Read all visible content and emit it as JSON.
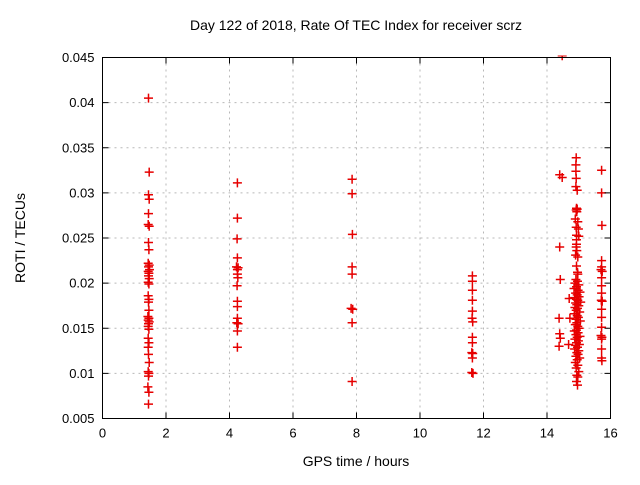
{
  "chart_data": {
    "type": "scatter",
    "title": "Day 122 of 2018, Rate Of TEC Index for receiver scrz",
    "xlabel": "GPS time / hours",
    "ylabel": "ROTI / TECUs",
    "xlim": [
      0,
      16
    ],
    "ylim": [
      0.005,
      0.045
    ],
    "xticks": {
      "values": [
        0,
        2,
        4,
        6,
        8,
        10,
        12,
        14,
        16
      ],
      "labels": [
        "0",
        "2",
        "4",
        "6",
        "8",
        "10",
        "12",
        "14",
        "16"
      ]
    },
    "yticks": {
      "values": [
        0.005,
        0.01,
        0.015,
        0.02,
        0.025,
        0.03,
        0.035,
        0.04,
        0.045
      ],
      "labels": [
        "0.005",
        "0.01",
        "0.015",
        "0.02",
        "0.025",
        "0.03",
        "0.035",
        "0.04",
        "0.045"
      ]
    },
    "grid": true,
    "legend_position": "none",
    "marker": {
      "shape": "plus",
      "size": 9,
      "stroke_width": 1.5
    },
    "colors": {
      "background": "#ffffff",
      "border": "#000000",
      "grid": "#b8b8b8",
      "text": "#000000",
      "points": "#e60000"
    },
    "series": [
      {
        "name": "ROTI",
        "points": [
          [
            1.45,
            0.0405
          ],
          [
            1.47,
            0.0323
          ],
          [
            1.45,
            0.0298
          ],
          [
            1.47,
            0.0293
          ],
          [
            1.45,
            0.0277
          ],
          [
            1.44,
            0.0265
          ],
          [
            1.47,
            0.0263
          ],
          [
            1.45,
            0.0245
          ],
          [
            1.46,
            0.0237
          ],
          [
            1.44,
            0.0222
          ],
          [
            1.47,
            0.022
          ],
          [
            1.45,
            0.0218
          ],
          [
            1.48,
            0.0215
          ],
          [
            1.44,
            0.0213
          ],
          [
            1.46,
            0.0211
          ],
          [
            1.45,
            0.0208
          ],
          [
            1.47,
            0.0205
          ],
          [
            1.44,
            0.0201
          ],
          [
            1.46,
            0.0199
          ],
          [
            1.44,
            0.0186
          ],
          [
            1.46,
            0.0182
          ],
          [
            1.45,
            0.0179
          ],
          [
            1.46,
            0.017
          ],
          [
            1.43,
            0.0163
          ],
          [
            1.46,
            0.0161
          ],
          [
            1.44,
            0.0159
          ],
          [
            1.47,
            0.0157
          ],
          [
            1.45,
            0.0155
          ],
          [
            1.44,
            0.0152
          ],
          [
            1.46,
            0.0149
          ],
          [
            1.44,
            0.0139
          ],
          [
            1.46,
            0.0134
          ],
          [
            1.44,
            0.0129
          ],
          [
            1.45,
            0.0121
          ],
          [
            1.47,
            0.0112
          ],
          [
            1.44,
            0.0102
          ],
          [
            1.46,
            0.01
          ],
          [
            1.45,
            0.0097
          ],
          [
            1.43,
            0.0085
          ],
          [
            1.46,
            0.0079
          ],
          [
            1.45,
            0.0066
          ],
          [
            4.25,
            0.0311
          ],
          [
            4.25,
            0.0272
          ],
          [
            4.24,
            0.0249
          ],
          [
            4.25,
            0.0228
          ],
          [
            4.22,
            0.0218
          ],
          [
            4.27,
            0.0217
          ],
          [
            4.25,
            0.0215
          ],
          [
            4.25,
            0.021
          ],
          [
            4.26,
            0.0206
          ],
          [
            4.24,
            0.0197
          ],
          [
            4.25,
            0.018
          ],
          [
            4.25,
            0.0174
          ],
          [
            4.25,
            0.0161
          ],
          [
            4.23,
            0.0156
          ],
          [
            4.27,
            0.0155
          ],
          [
            4.25,
            0.0147
          ],
          [
            4.25,
            0.0129
          ],
          [
            7.86,
            0.0315
          ],
          [
            7.86,
            0.0299
          ],
          [
            7.87,
            0.0254
          ],
          [
            7.86,
            0.0218
          ],
          [
            7.86,
            0.021
          ],
          [
            7.83,
            0.0172
          ],
          [
            7.88,
            0.0171
          ],
          [
            7.86,
            0.0156
          ],
          [
            7.86,
            0.0091
          ],
          [
            11.65,
            0.0208
          ],
          [
            11.65,
            0.0202
          ],
          [
            11.65,
            0.0192
          ],
          [
            11.65,
            0.0181
          ],
          [
            11.65,
            0.0169
          ],
          [
            11.64,
            0.0161
          ],
          [
            11.66,
            0.0157
          ],
          [
            11.65,
            0.014
          ],
          [
            11.65,
            0.0134
          ],
          [
            11.63,
            0.0123
          ],
          [
            11.66,
            0.0122
          ],
          [
            11.65,
            0.0117
          ],
          [
            11.63,
            0.0101
          ],
          [
            11.67,
            0.01
          ],
          [
            14.48,
            0.0452
          ],
          [
            14.4,
            0.032
          ],
          [
            14.48,
            0.0317
          ],
          [
            14.4,
            0.024
          ],
          [
            14.42,
            0.0204
          ],
          [
            14.38,
            0.0161
          ],
          [
            14.4,
            0.0144
          ],
          [
            14.42,
            0.0139
          ],
          [
            14.38,
            0.013
          ],
          [
            14.92,
            0.0339
          ],
          [
            14.91,
            0.0331
          ],
          [
            14.91,
            0.0324
          ],
          [
            14.92,
            0.0316
          ],
          [
            14.91,
            0.0307
          ],
          [
            14.95,
            0.0303
          ],
          [
            14.93,
            0.0283
          ],
          [
            14.95,
            0.0282
          ],
          [
            14.92,
            0.0281
          ],
          [
            14.94,
            0.0279
          ],
          [
            14.89,
            0.0271
          ],
          [
            14.97,
            0.0268
          ],
          [
            14.92,
            0.0262
          ],
          [
            14.99,
            0.026
          ],
          [
            14.93,
            0.0253
          ],
          [
            15.0,
            0.0252
          ],
          [
            14.93,
            0.0248
          ],
          [
            14.93,
            0.0243
          ],
          [
            14.92,
            0.024
          ],
          [
            14.94,
            0.0236
          ],
          [
            14.9,
            0.0231
          ],
          [
            14.97,
            0.0229
          ],
          [
            14.93,
            0.0219
          ],
          [
            14.96,
            0.0212
          ],
          [
            14.97,
            0.021
          ],
          [
            14.7,
            0.0183
          ],
          [
            14.72,
            0.0161
          ],
          [
            14.68,
            0.0132
          ],
          [
            14.91,
            0.0204
          ],
          [
            14.96,
            0.0202
          ],
          [
            14.88,
            0.02
          ],
          [
            15.0,
            0.0198
          ],
          [
            14.93,
            0.0196
          ],
          [
            14.85,
            0.0194
          ],
          [
            14.98,
            0.0192
          ],
          [
            15.04,
            0.019
          ],
          [
            14.9,
            0.0189
          ],
          [
            14.95,
            0.0187
          ],
          [
            15.01,
            0.0185
          ],
          [
            14.87,
            0.0184
          ],
          [
            14.93,
            0.0182
          ],
          [
            14.97,
            0.0181
          ],
          [
            15.06,
            0.0179
          ],
          [
            14.9,
            0.0178
          ],
          [
            14.94,
            0.0176
          ],
          [
            15.0,
            0.0175
          ],
          [
            14.88,
            0.0173
          ],
          [
            14.96,
            0.0172
          ],
          [
            14.92,
            0.017
          ],
          [
            15.03,
            0.0168
          ],
          [
            14.86,
            0.0166
          ],
          [
            14.95,
            0.0164
          ],
          [
            14.99,
            0.0162
          ],
          [
            14.91,
            0.016
          ],
          [
            15.05,
            0.0158
          ],
          [
            14.94,
            0.0156
          ],
          [
            14.89,
            0.0154
          ],
          [
            14.97,
            0.0152
          ],
          [
            15.01,
            0.015
          ],
          [
            14.93,
            0.0148
          ],
          [
            14.86,
            0.0147
          ],
          [
            14.98,
            0.0145
          ],
          [
            14.91,
            0.0143
          ],
          [
            15.04,
            0.0141
          ],
          [
            14.95,
            0.014
          ],
          [
            14.88,
            0.0138
          ],
          [
            14.99,
            0.0136
          ],
          [
            14.93,
            0.0134
          ],
          [
            15.02,
            0.0132
          ],
          [
            14.9,
            0.0131
          ],
          [
            14.96,
            0.0129
          ],
          [
            14.87,
            0.0127
          ],
          [
            15.0,
            0.0125
          ],
          [
            14.94,
            0.0123
          ],
          [
            14.98,
            0.0121
          ],
          [
            14.91,
            0.0119
          ],
          [
            15.03,
            0.0117
          ],
          [
            14.95,
            0.0115
          ],
          [
            14.89,
            0.0112
          ],
          [
            14.97,
            0.0109
          ],
          [
            14.92,
            0.0106
          ],
          [
            15.0,
            0.0102
          ],
          [
            14.94,
            0.0098
          ],
          [
            14.97,
            0.0096
          ],
          [
            14.93,
            0.0091
          ],
          [
            14.96,
            0.0087
          ],
          [
            15.72,
            0.0325
          ],
          [
            15.72,
            0.03
          ],
          [
            15.73,
            0.0264
          ],
          [
            15.72,
            0.0225
          ],
          [
            15.72,
            0.0218
          ],
          [
            15.7,
            0.0215
          ],
          [
            15.74,
            0.0213
          ],
          [
            15.72,
            0.0206
          ],
          [
            15.72,
            0.0197
          ],
          [
            15.72,
            0.0189
          ],
          [
            15.71,
            0.0181
          ],
          [
            15.74,
            0.018
          ],
          [
            15.72,
            0.0171
          ],
          [
            15.72,
            0.0162
          ],
          [
            15.72,
            0.0151
          ],
          [
            15.7,
            0.0142
          ],
          [
            15.73,
            0.014
          ],
          [
            15.72,
            0.0138
          ],
          [
            15.72,
            0.0127
          ],
          [
            15.72,
            0.0117
          ],
          [
            15.73,
            0.0114
          ]
        ]
      }
    ]
  }
}
